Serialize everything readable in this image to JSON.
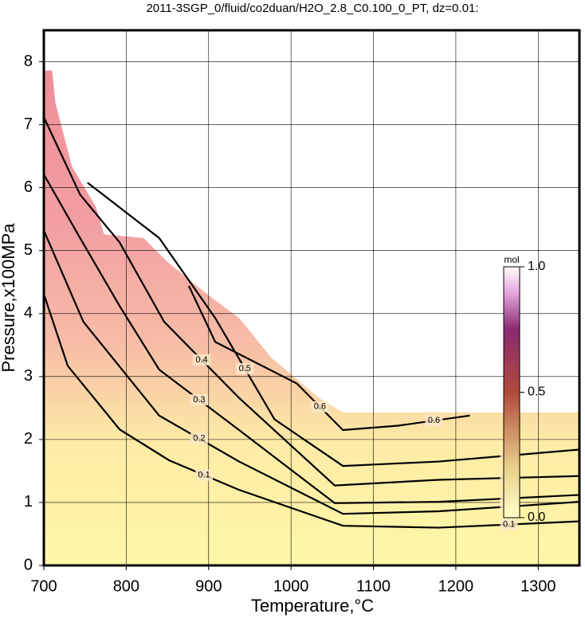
{
  "chart_data": {
    "type": "contour",
    "title": "2011-3SGP_0/fluid/co2duan/H2O_2.8_C0.100_0_PT, dz=0.01:",
    "x_label": "Temperature,°C",
    "y_label": "Pressure,x100MPa",
    "xlim": [
      700,
      1350
    ],
    "xticks": [
      700,
      800,
      900,
      1000,
      1100,
      1200,
      1300
    ],
    "ylim": [
      0,
      8.5
    ],
    "yticks": [
      0,
      1,
      2,
      3,
      4,
      5,
      6,
      7,
      8
    ],
    "grid": true,
    "data_boundary": {
      "x": [
        700,
        710,
        714,
        734,
        763,
        773,
        821,
        850,
        898,
        937,
        976,
        1034,
        1063,
        1350
      ],
      "y": [
        7.86,
        7.86,
        7.35,
        6.34,
        5.7,
        5.26,
        5.2,
        4.82,
        4.31,
        3.93,
        3.3,
        2.66,
        2.43,
        2.43
      ]
    },
    "series": [
      {
        "name": "0.1",
        "color": "#000000",
        "x": [
          700,
          729,
          792,
          852,
          937,
          1063,
          1179,
          1350
        ],
        "values": [
          4.31,
          3.17,
          2.16,
          1.67,
          1.2,
          0.63,
          0.6,
          0.7
        ]
      },
      {
        "name": "0.2",
        "color": "#000000",
        "x": [
          700,
          748,
          840,
          937,
          1063,
          1179,
          1350
        ],
        "values": [
          5.32,
          3.87,
          2.38,
          1.65,
          0.82,
          0.86,
          1.01
        ]
      },
      {
        "name": "0.3",
        "color": "#000000",
        "x": [
          700,
          744,
          792,
          840,
          937,
          1053,
          1179,
          1350
        ],
        "values": [
          6.21,
          5.2,
          4.12,
          3.11,
          2.15,
          0.99,
          1.01,
          1.12
        ]
      },
      {
        "name": "0.4",
        "color": "#000000",
        "x": [
          700,
          744,
          792,
          846,
          937,
          1053,
          1179,
          1350
        ],
        "values": [
          7.12,
          5.89,
          5.13,
          3.87,
          2.66,
          1.27,
          1.36,
          1.42
        ]
      },
      {
        "name": "0.5",
        "color": "#000000",
        "x": [
          753,
          840,
          908,
          980,
          1063,
          1179,
          1350
        ],
        "values": [
          6.08,
          5.2,
          3.93,
          2.32,
          1.58,
          1.65,
          1.84
        ]
      },
      {
        "name": "0.6",
        "color": "#000000",
        "x": [
          876,
          908,
          1007,
          1063,
          1130,
          1217
        ],
        "values": [
          4.44,
          3.55,
          2.89,
          2.15,
          2.22,
          2.38
        ]
      }
    ],
    "colorbar": {
      "label": "mol",
      "lim": [
        0,
        1
      ],
      "ticks": [
        {
          "value": 0,
          "label": "0.0"
        },
        0.5,
        {
          "value": 1,
          "label": "1.0"
        }
      ]
    }
  }
}
